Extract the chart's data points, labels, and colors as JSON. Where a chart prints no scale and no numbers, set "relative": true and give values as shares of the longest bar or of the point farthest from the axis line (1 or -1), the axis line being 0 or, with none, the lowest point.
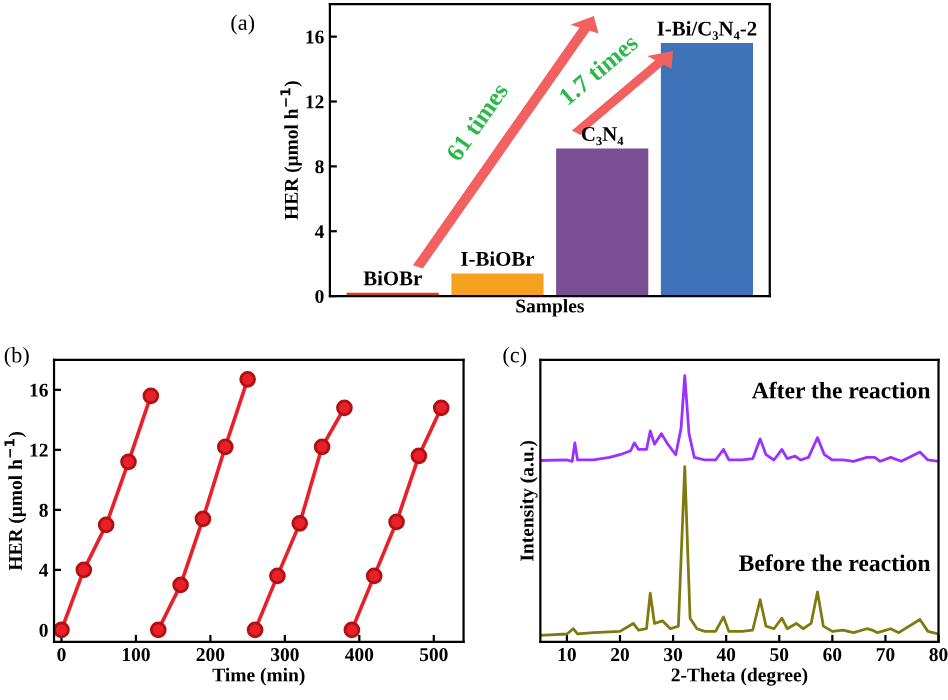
{
  "chart_data": [
    {
      "type": "bar",
      "title": "(a)",
      "xlabel": "Samples",
      "ylabel": "HER (μmol h$^{−1}$)",
      "categories": [
        "BiOBr",
        "I-BiOBr",
        "C₃N₄",
        "I-Bi/C₃N₄-2"
      ],
      "values": [
        0.2,
        1.4,
        9.1,
        15.6
      ],
      "colors": [
        "#e03c1f",
        "#f5a020",
        "#7b4f96",
        "#3f72b8"
      ],
      "ylim": [
        0,
        18
      ],
      "yticks": [
        0,
        4,
        8,
        12,
        16
      ],
      "annotations": [
        "61 times",
        "1.7 times"
      ]
    },
    {
      "type": "line",
      "title": "(b)",
      "xlabel": "Time (min)",
      "ylabel": "HER (μmol h$^{−1}$)",
      "series": [
        {
          "color": "#e8202a",
          "x": [
            0,
            30,
            60,
            90,
            120
          ],
          "values": [
            0,
            4,
            7,
            11.2,
            15.6
          ]
        },
        {
          "color": "#e8202a",
          "x": [
            130,
            160,
            190,
            220,
            250
          ],
          "values": [
            0,
            3,
            7.4,
            12.2,
            16.7
          ]
        },
        {
          "color": "#e8202a",
          "x": [
            260,
            290,
            320,
            350,
            380
          ],
          "values": [
            0,
            3.6,
            7.1,
            12.2,
            14.8
          ]
        },
        {
          "color": "#e8202a",
          "x": [
            390,
            420,
            450,
            480,
            510
          ],
          "values": [
            0,
            3.6,
            7.2,
            11.6,
            14.8
          ]
        }
      ],
      "xlim": [
        -10,
        540
      ],
      "xticks": [
        0,
        100,
        200,
        300,
        400,
        500
      ],
      "ylim": [
        -0.8,
        18
      ],
      "yticks": [
        0,
        4,
        8,
        12,
        16
      ],
      "marker": "circle"
    },
    {
      "type": "line",
      "title": "(c)",
      "xlabel": "2-Theta (degree)",
      "ylabel": "Intensity (a.u.)",
      "relative": true,
      "tick_labels": "x",
      "xlim": [
        5,
        80
      ],
      "xticks": [
        10,
        20,
        30,
        40,
        50,
        60,
        70,
        80
      ],
      "series": [
        {
          "name": "After the reaction",
          "color": "#9b30ff",
          "x": [
            5,
            10,
            11,
            11.5,
            12,
            15,
            18,
            20,
            22,
            22.7,
            23.5,
            25,
            25.7,
            26.5,
            27.8,
            29,
            30.5,
            31.5,
            32.2,
            33,
            34,
            36,
            38,
            39.5,
            40.5,
            43,
            45,
            46.4,
            47.5,
            49,
            50.5,
            51.5,
            53,
            54,
            55.5,
            57.2,
            58.5,
            60,
            62,
            64,
            66.5,
            68,
            69,
            71,
            73,
            76.5,
            78,
            80
          ],
          "values": [
            0.678,
            0.68,
            0.675,
            0.745,
            0.68,
            0.68,
            0.69,
            0.7,
            0.715,
            0.745,
            0.72,
            0.72,
            0.79,
            0.74,
            0.78,
            0.74,
            0.7,
            0.8,
            1.0,
            0.78,
            0.69,
            0.68,
            0.68,
            0.72,
            0.68,
            0.68,
            0.685,
            0.76,
            0.7,
            0.68,
            0.72,
            0.685,
            0.695,
            0.68,
            0.69,
            0.765,
            0.7,
            0.68,
            0.68,
            0.675,
            0.69,
            0.69,
            0.675,
            0.69,
            0.675,
            0.71,
            0.68,
            0.675
          ]
        },
        {
          "name": "Before the reaction",
          "color": "#7f7a10",
          "x": [
            5,
            10,
            11.2,
            12,
            15,
            20,
            22.5,
            23.5,
            25,
            25.7,
            26.5,
            28,
            29.5,
            31,
            32.2,
            33.2,
            34.5,
            36,
            38,
            39.5,
            40.5,
            43,
            45,
            46.4,
            47.5,
            49,
            50.5,
            51.5,
            53.2,
            54.5,
            56,
            57.2,
            58.3,
            60,
            62,
            64,
            66.5,
            67.5,
            68.5,
            71,
            72.5,
            76.5,
            78,
            80
          ],
          "values": [
            0.015,
            0.02,
            0.04,
            0.02,
            0.025,
            0.03,
            0.06,
            0.035,
            0.04,
            0.175,
            0.06,
            0.07,
            0.04,
            0.05,
            0.655,
            0.08,
            0.04,
            0.03,
            0.03,
            0.085,
            0.03,
            0.03,
            0.035,
            0.15,
            0.05,
            0.04,
            0.08,
            0.04,
            0.06,
            0.04,
            0.06,
            0.18,
            0.05,
            0.03,
            0.035,
            0.025,
            0.04,
            0.035,
            0.025,
            0.04,
            0.025,
            0.075,
            0.03,
            0.02
          ]
        }
      ]
    }
  ]
}
